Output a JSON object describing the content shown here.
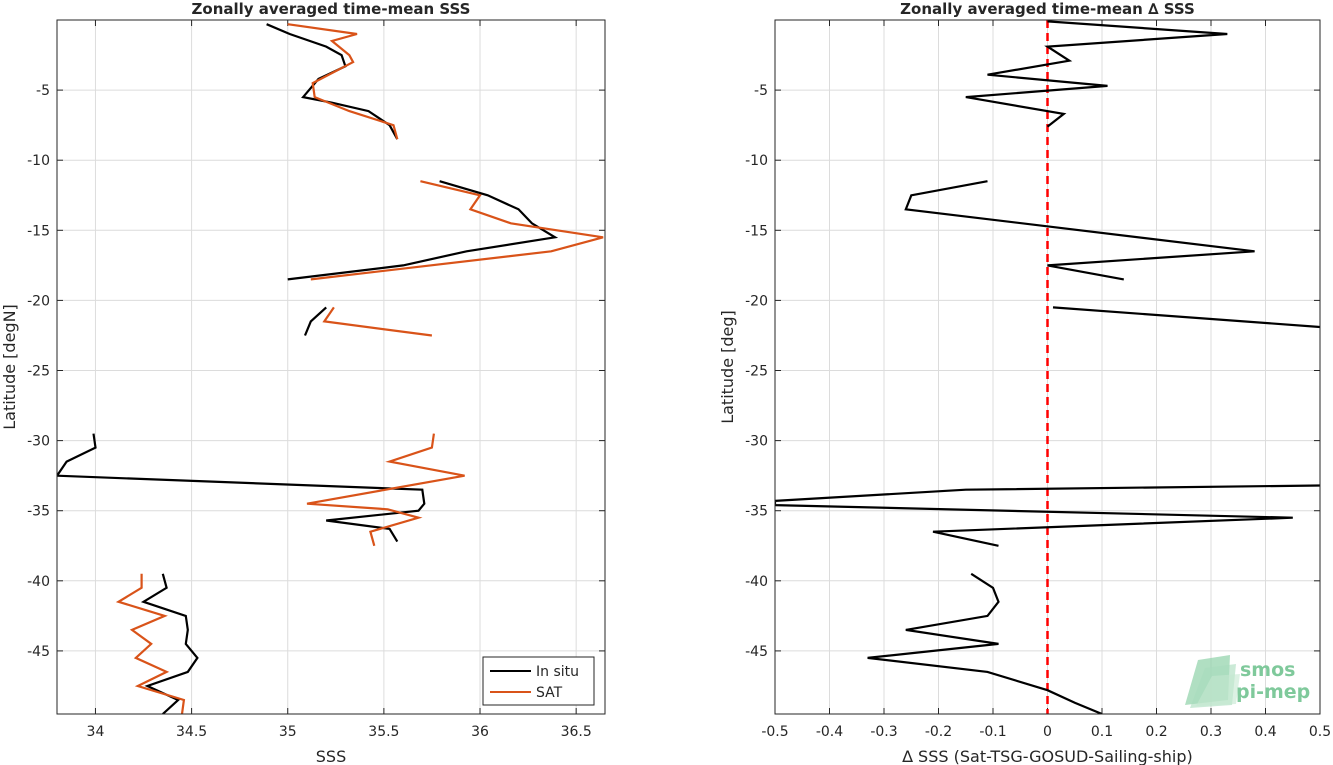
{
  "chart_data": [
    {
      "type": "line",
      "title": "Zonally averaged time-mean SSS",
      "xlabel": "SSS",
      "ylabel": "Latitude [degN]",
      "xlim": [
        33.8,
        36.65
      ],
      "ylim": [
        -49.5,
        0
      ],
      "xticks": [
        34,
        34.5,
        35,
        35.5,
        36,
        36.5
      ],
      "xtick_labels": [
        "34",
        "34.5",
        "35",
        "35.5",
        "36",
        "36.5"
      ],
      "yticks": [
        -5,
        -10,
        -15,
        -20,
        -25,
        -30,
        -35,
        -40,
        -45
      ],
      "ytick_labels": [
        "-5",
        "-10",
        "-15",
        "-20",
        "-25",
        "-30",
        "-35",
        "-40",
        "-45"
      ],
      "grid": true,
      "legend": "bottom-right",
      "series": [
        {
          "name": "In situ",
          "color": "#000000",
          "segments": [
            [
              [
                34.89,
                -0.3
              ],
              [
                35.01,
                -1.0
              ],
              [
                35.2,
                -1.9
              ],
              [
                35.28,
                -2.5
              ],
              [
                35.3,
                -3.3
              ],
              [
                35.16,
                -4.2
              ],
              [
                35.08,
                -5.5
              ],
              [
                35.23,
                -5.9
              ],
              [
                35.42,
                -6.5
              ],
              [
                35.53,
                -7.5
              ],
              [
                35.57,
                -8.5
              ]
            ],
            [
              [
                35.79,
                -11.5
              ],
              [
                36.04,
                -12.5
              ],
              [
                36.2,
                -13.5
              ],
              [
                36.27,
                -14.5
              ],
              [
                36.39,
                -15.5
              ],
              [
                35.93,
                -16.5
              ],
              [
                35.6,
                -17.5
              ],
              [
                35.0,
                -18.5
              ]
            ],
            [
              [
                35.2,
                -20.5
              ],
              [
                35.12,
                -21.5
              ],
              [
                35.09,
                -22.5
              ]
            ],
            [
              [
                33.99,
                -29.5
              ],
              [
                34.0,
                -30.5
              ],
              [
                33.85,
                -31.5
              ],
              [
                33.8,
                -32.5
              ],
              [
                35.7,
                -33.5
              ],
              [
                35.71,
                -34.5
              ],
              [
                35.68,
                -35.0
              ],
              [
                35.2,
                -35.7
              ],
              [
                35.53,
                -36.3
              ],
              [
                35.57,
                -37.2
              ]
            ],
            [
              [
                34.35,
                -39.5
              ],
              [
                34.37,
                -40.5
              ],
              [
                34.25,
                -41.5
              ],
              [
                34.47,
                -42.5
              ],
              [
                34.48,
                -43.5
              ],
              [
                34.47,
                -44.5
              ],
              [
                34.53,
                -45.5
              ],
              [
                34.48,
                -46.5
              ],
              [
                34.27,
                -47.5
              ],
              [
                34.43,
                -48.5
              ],
              [
                34.35,
                -49.5
              ]
            ]
          ]
        },
        {
          "name": "SAT",
          "color": "#d95319",
          "segments": [
            [
              [
                35.0,
                -0.3
              ],
              [
                35.36,
                -1.0
              ],
              [
                35.23,
                -1.5
              ],
              [
                35.32,
                -2.5
              ],
              [
                35.34,
                -3.0
              ],
              [
                35.13,
                -4.5
              ],
              [
                35.14,
                -5.5
              ],
              [
                35.32,
                -6.5
              ],
              [
                35.55,
                -7.5
              ],
              [
                35.57,
                -8.5
              ]
            ],
            [
              [
                35.69,
                -11.5
              ],
              [
                36.0,
                -12.5
              ],
              [
                35.95,
                -13.5
              ],
              [
                36.16,
                -14.5
              ],
              [
                36.64,
                -15.5
              ],
              [
                36.37,
                -16.5
              ],
              [
                35.12,
                -18.5
              ]
            ],
            [
              [
                35.24,
                -20.5
              ],
              [
                35.19,
                -21.5
              ],
              [
                35.75,
                -22.5
              ]
            ],
            [
              [
                35.76,
                -29.5
              ],
              [
                35.75,
                -30.5
              ],
              [
                35.53,
                -31.5
              ],
              [
                35.92,
                -32.5
              ],
              [
                35.1,
                -34.5
              ],
              [
                35.52,
                -34.9
              ],
              [
                35.68,
                -35.5
              ],
              [
                35.43,
                -36.5
              ],
              [
                35.45,
                -37.5
              ]
            ],
            [
              [
                34.24,
                -39.5
              ],
              [
                34.24,
                -40.5
              ],
              [
                34.12,
                -41.5
              ],
              [
                34.36,
                -42.5
              ],
              [
                34.19,
                -43.5
              ],
              [
                34.29,
                -44.5
              ],
              [
                34.21,
                -45.5
              ],
              [
                34.37,
                -46.5
              ],
              [
                34.22,
                -47.5
              ],
              [
                34.46,
                -48.5
              ],
              [
                34.45,
                -49.5
              ]
            ]
          ]
        }
      ]
    },
    {
      "type": "line",
      "title": "Zonally averaged time-mean ∆ SSS",
      "xlabel": "∆ SSS (Sat-TSG-GOSUD-Sailing-ship)",
      "ylabel": "Latitude [deg]",
      "xlim": [
        -0.5,
        0.5
      ],
      "ylim": [
        -49.5,
        0
      ],
      "xticks": [
        -0.5,
        -0.4,
        -0.3,
        -0.2,
        -0.1,
        0,
        0.1,
        0.2,
        0.3,
        0.4,
        0.5
      ],
      "xtick_labels": [
        "-0.5",
        "-0.4",
        "-0.3",
        "-0.2",
        "-0.1",
        "0",
        "0.1",
        "0.2",
        "0.3",
        "0.4",
        "0.5"
      ],
      "yticks": [
        -5,
        -10,
        -15,
        -20,
        -25,
        -30,
        -35,
        -40,
        -45
      ],
      "ytick_labels": [
        "-5",
        "-10",
        "-15",
        "-20",
        "-25",
        "-30",
        "-35",
        "-40",
        "-45"
      ],
      "grid": true,
      "reference_line": {
        "x": 0,
        "color": "#ff0000",
        "style": "dashed"
      },
      "series": [
        {
          "color": "#000000",
          "segments": [
            [
              [
                0.0,
                -0.1
              ],
              [
                0.33,
                -1.0
              ],
              [
                0.0,
                -1.9
              ],
              [
                0.04,
                -2.9
              ],
              [
                -0.11,
                -3.9
              ],
              [
                0.11,
                -4.7
              ],
              [
                -0.15,
                -5.5
              ],
              [
                0.03,
                -6.7
              ],
              [
                0.0,
                -7.6
              ]
            ],
            [
              [
                -0.11,
                -11.5
              ],
              [
                -0.25,
                -12.5
              ],
              [
                -0.26,
                -13.5
              ],
              [
                0.38,
                -16.5
              ],
              [
                0.0,
                -17.5
              ],
              [
                0.14,
                -18.5
              ]
            ],
            [
              [
                0.01,
                -20.5
              ],
              [
                0.5,
                -21.9
              ]
            ],
            [
              [
                0.5,
                -33.2
              ],
              [
                -0.15,
                -33.5
              ],
              [
                -0.5,
                -34.3
              ],
              [
                -0.5,
                -34.6
              ],
              [
                0.45,
                -35.5
              ],
              [
                -0.21,
                -36.5
              ],
              [
                -0.09,
                -37.5
              ]
            ],
            [
              [
                -0.14,
                -39.5
              ],
              [
                -0.1,
                -40.5
              ],
              [
                -0.09,
                -41.5
              ],
              [
                -0.11,
                -42.5
              ],
              [
                -0.26,
                -43.5
              ],
              [
                -0.09,
                -44.5
              ],
              [
                -0.33,
                -45.5
              ],
              [
                -0.11,
                -46.5
              ],
              [
                0.0,
                -47.8
              ],
              [
                0.05,
                -48.7
              ],
              [
                0.1,
                -49.5
              ]
            ]
          ]
        }
      ]
    }
  ],
  "logo": {
    "line1": "smos",
    "line2": "pi-mep"
  }
}
